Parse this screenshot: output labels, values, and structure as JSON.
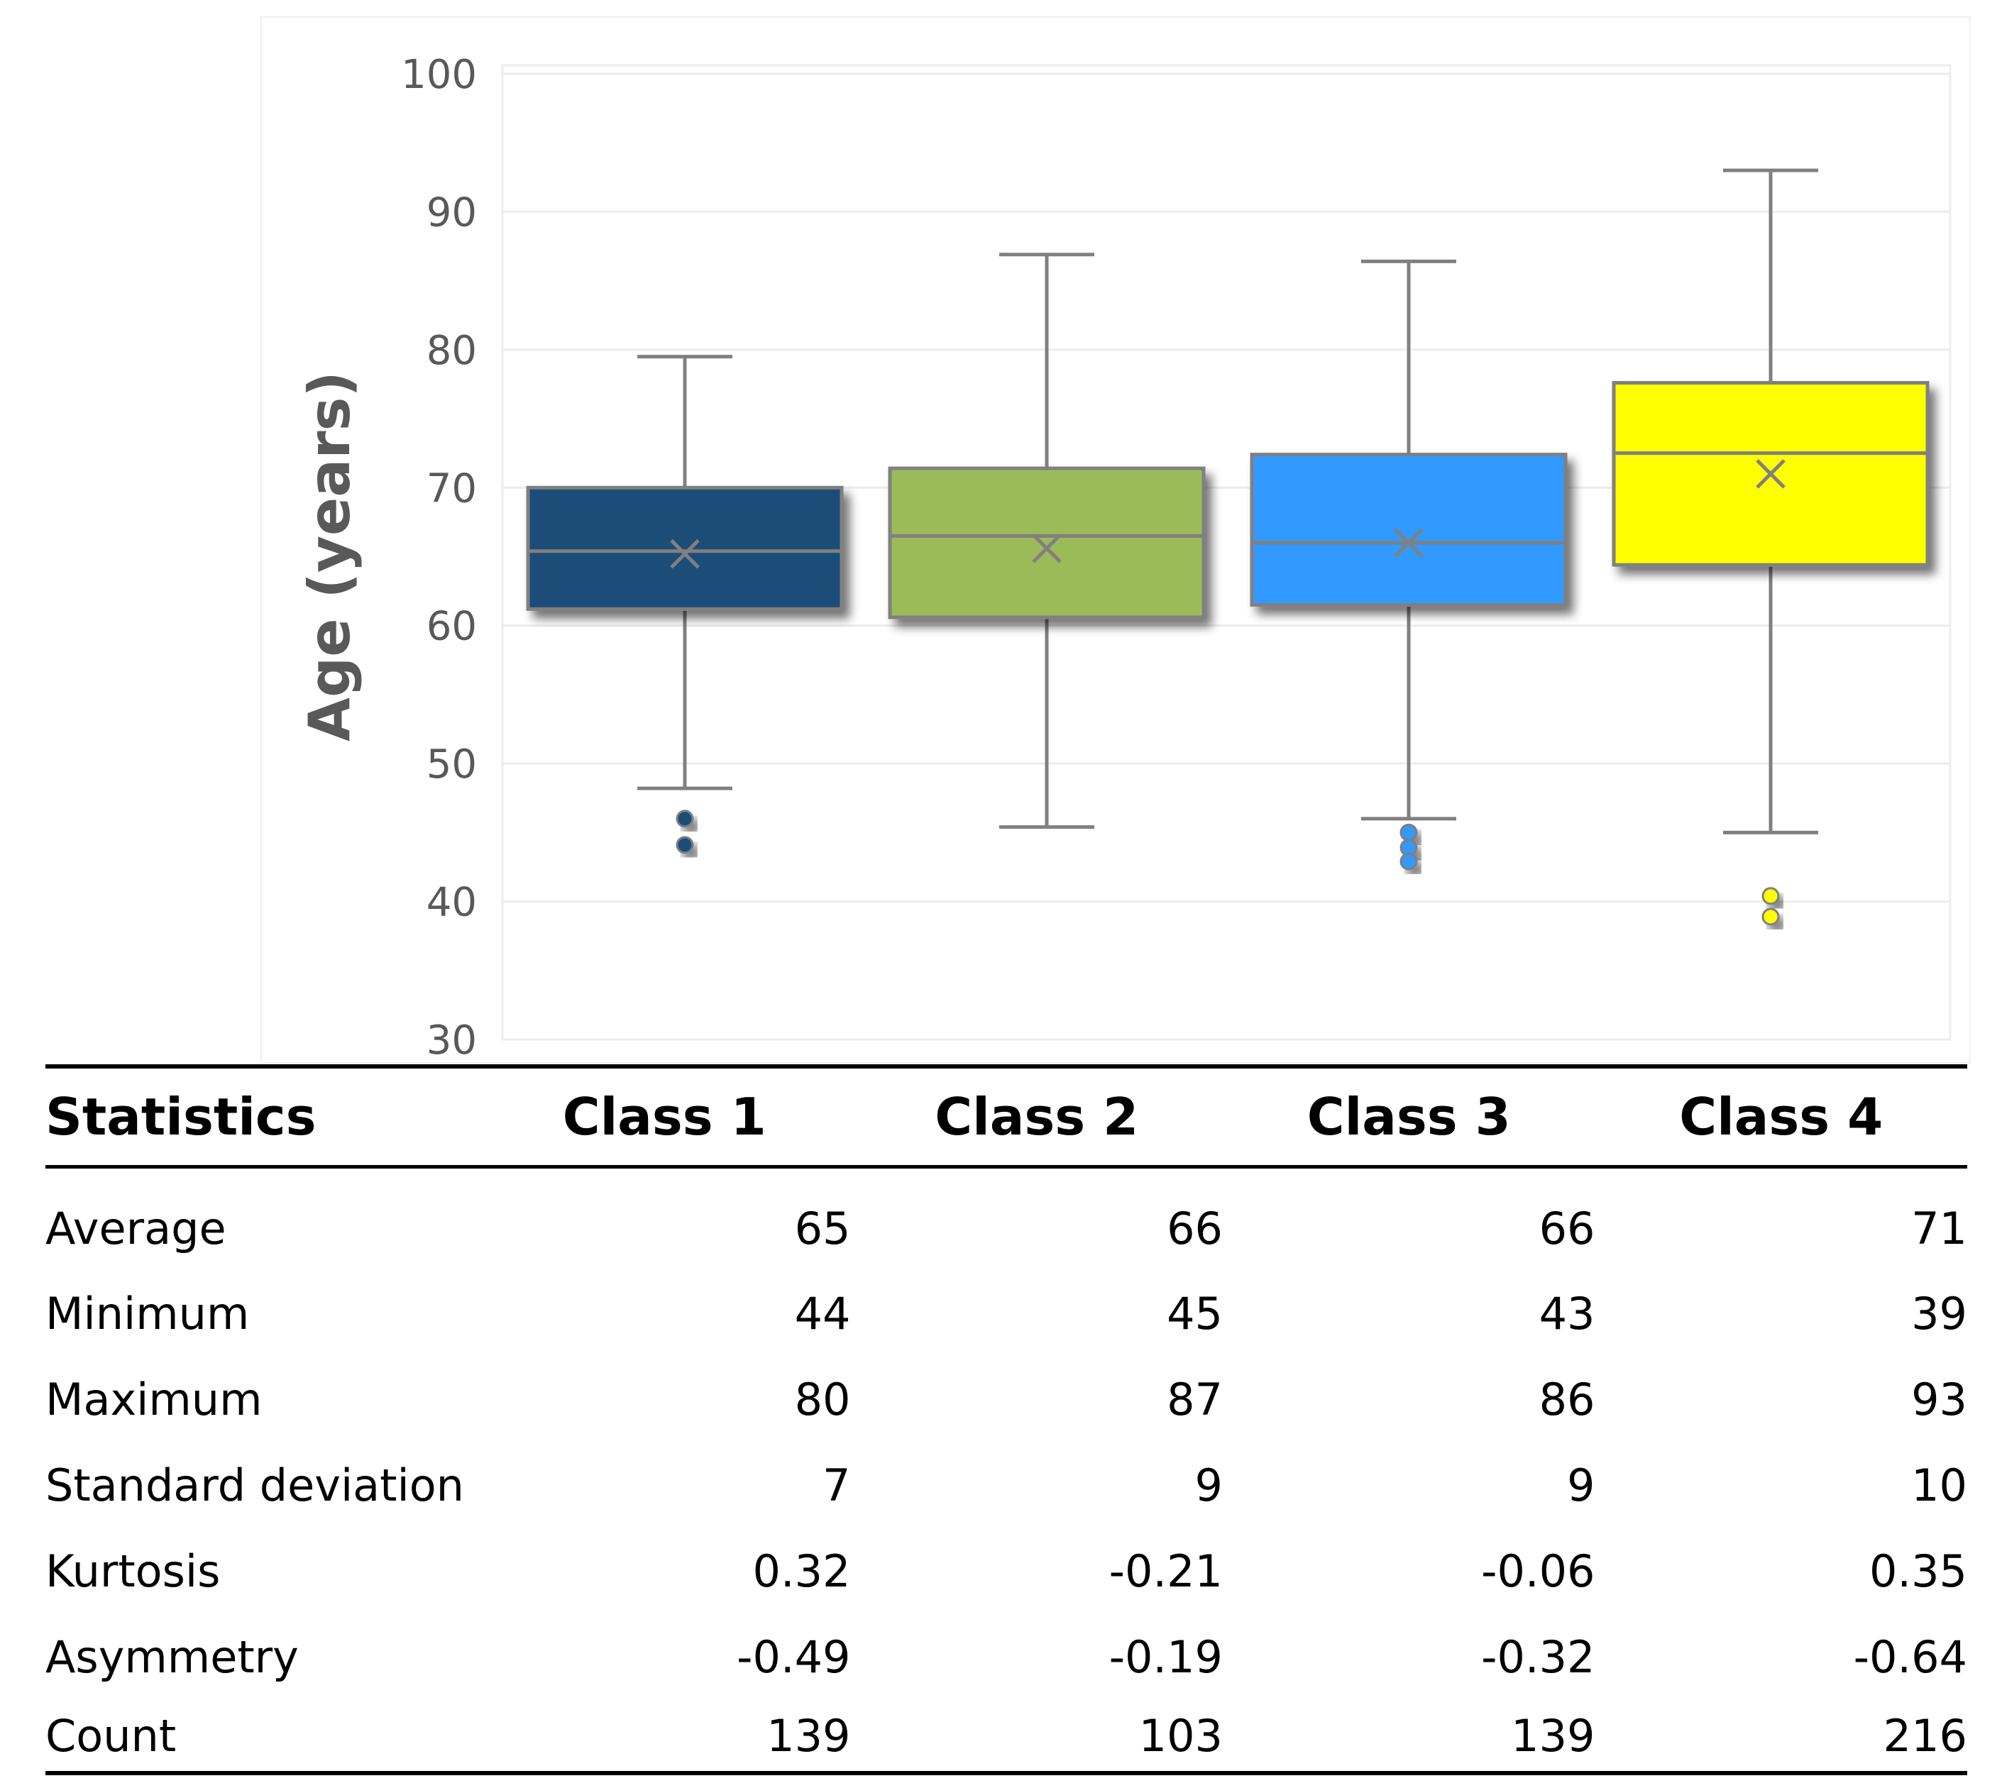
{
  "chart_data": {
    "type": "boxplot",
    "ylabel": "Age (years)",
    "ylim": [
      30,
      100
    ],
    "yticks": [
      30,
      40,
      50,
      60,
      70,
      80,
      90,
      100
    ],
    "grid": true,
    "categories": [
      "Class 1",
      "Class 2",
      "Class 3",
      "Class 4"
    ],
    "series": [
      {
        "name": "Class 1",
        "color": "#1f4e79",
        "whisker_low": 48.2,
        "q1": 61.2,
        "median": 65.4,
        "q3": 70.0,
        "whisker_high": 79.5,
        "mean": 65.2,
        "outliers": [
          46.0,
          44.1
        ]
      },
      {
        "name": "Class 2",
        "color": "#9bbb59",
        "whisker_low": 45.4,
        "q1": 60.6,
        "median": 66.5,
        "q3": 71.4,
        "whisker_high": 86.9,
        "mean": 65.6,
        "outliers": []
      },
      {
        "name": "Class 3",
        "color": "#3399ff",
        "whisker_low": 46.0,
        "q1": 61.5,
        "median": 66.0,
        "q3": 72.4,
        "whisker_high": 86.4,
        "mean": 66.0,
        "outliers": [
          45.0,
          43.9,
          42.9
        ]
      },
      {
        "name": "Class 4",
        "color": "#ffff00",
        "whisker_low": 45.0,
        "q1": 64.4,
        "median": 72.5,
        "q3": 77.6,
        "whisker_high": 93.0,
        "mean": 71.0,
        "outliers": [
          40.4,
          38.9
        ]
      }
    ]
  },
  "table": {
    "header_label": "Statistics",
    "columns": [
      "Class 1",
      "Class 2",
      "Class 3",
      "Class 4"
    ],
    "rows": [
      {
        "label": "Average",
        "values": [
          "65",
          "66",
          "66",
          "71"
        ]
      },
      {
        "label": "Minimum",
        "values": [
          "44",
          "45",
          "43",
          "39"
        ]
      },
      {
        "label": "Maximum",
        "values": [
          "80",
          "87",
          "86",
          "93"
        ]
      },
      {
        "label": "Standard deviation",
        "values": [
          "7",
          "9",
          "9",
          "10"
        ]
      },
      {
        "label": "Kurtosis",
        "values": [
          "0.32",
          "-0.21",
          "-0.06",
          "0.35"
        ]
      },
      {
        "label": "Asymmetry",
        "values": [
          "-0.49",
          "-0.19",
          "-0.32",
          "-0.64"
        ]
      },
      {
        "label": "Count",
        "values": [
          "139",
          "103",
          "139",
          "216"
        ]
      }
    ]
  }
}
